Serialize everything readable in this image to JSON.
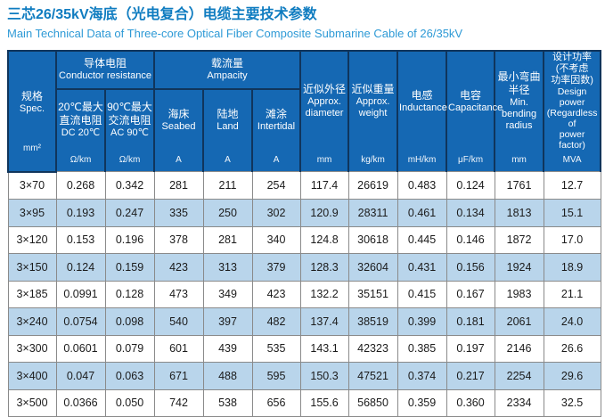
{
  "page": {
    "title_zh": "三芯26/35kV海底（光电复合）电缆主要技术参数",
    "title_en": "Main Technical Data of Three-core Optical Fiber Composite Submarine Cable of 26/35kV"
  },
  "colors": {
    "header_bg": "#1568b3",
    "header_grid": "#10355c",
    "row_alt": "#b9d5eb",
    "body_grid": "#8a8a8a",
    "title_zh": "#0f7cc0",
    "title_en": "#2e9ad6"
  },
  "table": {
    "groups": {
      "conductor_resistance": {
        "zh": "导体电阻",
        "en": "Conductor resistance"
      },
      "ampacity": {
        "zh": "载流量",
        "en": "Ampacity"
      }
    },
    "columns": {
      "spec": {
        "zh": "规格",
        "en": "Spec.",
        "unit": "mm²"
      },
      "dc20": {
        "zh": "20℃最大\n直流电阻",
        "en": "DC 20℃",
        "unit": "Ω/km"
      },
      "ac90": {
        "zh": "90℃最大\n交流电阻",
        "en": "AC 90℃",
        "unit": "Ω/km"
      },
      "seabed": {
        "zh": "海床",
        "en": "Seabed",
        "unit": "A"
      },
      "land": {
        "zh": "陆地",
        "en": "Land",
        "unit": "A"
      },
      "intertidal": {
        "zh": "滩涂",
        "en": "Intertidal",
        "unit": "A"
      },
      "diameter": {
        "zh": "近似外径",
        "en": "Approx.\ndiameter",
        "unit": "mm"
      },
      "weight": {
        "zh": "近似重量",
        "en": "Approx.\nweight",
        "unit": "kg/km"
      },
      "inductance": {
        "zh": "电感",
        "en": "Inductance",
        "unit": "mH/km"
      },
      "capacitance": {
        "zh": "电容",
        "en": "Capacitance",
        "unit": "μF/km"
      },
      "bending": {
        "zh": "最小弯曲\n半径",
        "en": "Min.\nbending\nradius",
        "unit": "mm"
      },
      "power": {
        "zh": "设计功率\n(不考虑\n功率因数)",
        "en": "Design\npower\n(Regardless of\npower factor)",
        "unit": "MVA"
      }
    },
    "rows": [
      [
        "3×70",
        "0.268",
        "0.342",
        "281",
        "211",
        "254",
        "117.4",
        "26619",
        "0.483",
        "0.124",
        "1761",
        "12.7"
      ],
      [
        "3×95",
        "0.193",
        "0.247",
        "335",
        "250",
        "302",
        "120.9",
        "28311",
        "0.461",
        "0.134",
        "1813",
        "15.1"
      ],
      [
        "3×120",
        "0.153",
        "0.196",
        "378",
        "281",
        "340",
        "124.8",
        "30618",
        "0.445",
        "0.146",
        "1872",
        "17.0"
      ],
      [
        "3×150",
        "0.124",
        "0.159",
        "423",
        "313",
        "379",
        "128.3",
        "32604",
        "0.431",
        "0.156",
        "1924",
        "18.9"
      ],
      [
        "3×185",
        "0.0991",
        "0.128",
        "473",
        "349",
        "423",
        "132.2",
        "35151",
        "0.415",
        "0.167",
        "1983",
        "21.1"
      ],
      [
        "3×240",
        "0.0754",
        "0.098",
        "540",
        "397",
        "482",
        "137.4",
        "38519",
        "0.399",
        "0.181",
        "2061",
        "24.0"
      ],
      [
        "3×300",
        "0.0601",
        "0.079",
        "601",
        "439",
        "535",
        "143.1",
        "42323",
        "0.385",
        "0.197",
        "2146",
        "26.6"
      ],
      [
        "3×400",
        "0.047",
        "0.063",
        "671",
        "488",
        "595",
        "150.3",
        "47521",
        "0.374",
        "0.217",
        "2254",
        "29.6"
      ],
      [
        "3×500",
        "0.0366",
        "0.050",
        "742",
        "538",
        "656",
        "155.6",
        "56850",
        "0.359",
        "0.360",
        "2334",
        "32.5"
      ]
    ]
  }
}
